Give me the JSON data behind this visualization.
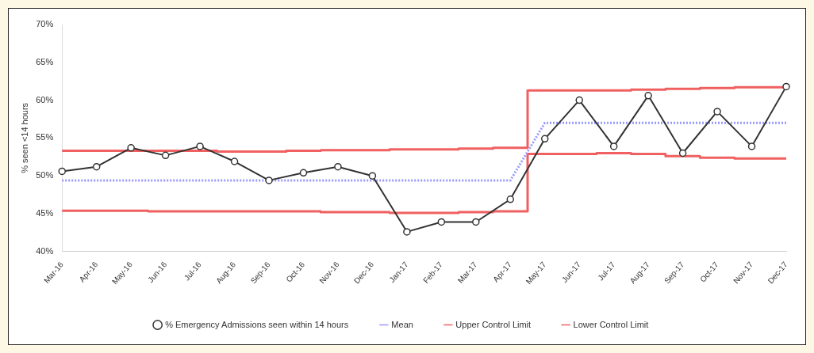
{
  "chart_data": {
    "type": "line",
    "ylabel": "% seen <14 hours",
    "categories": [
      "Mar-16",
      "Apr-16",
      "May-16",
      "Jun-16",
      "Jul-16",
      "Aug-16",
      "Sep-16",
      "Oct-16",
      "Nov-16",
      "Dec-16",
      "Jan-17",
      "Feb-17",
      "Mar-17",
      "Apr-17",
      "May-17",
      "Jun-17",
      "Jul-17",
      "Aug-17",
      "Sep-17",
      "Oct-17",
      "Nov-17",
      "Dec-17"
    ],
    "series": [
      {
        "name": "% Emergency Admissions seen within 14 hours",
        "color": "#333333",
        "marker": "circle",
        "line_style": "solid",
        "values": [
          50.6,
          51.2,
          53.7,
          52.7,
          53.9,
          51.9,
          49.4,
          50.4,
          51.2,
          50.0,
          42.6,
          43.9,
          43.9,
          46.9,
          54.9,
          60.0,
          53.9,
          60.6,
          53.0,
          58.5,
          53.9,
          61.8
        ]
      },
      {
        "name": "Mean",
        "color": "#9999ff",
        "marker": "none",
        "line_style": "dotted",
        "values": [
          49.4,
          49.4,
          49.4,
          49.4,
          49.4,
          49.4,
          49.4,
          49.4,
          49.4,
          49.4,
          49.4,
          49.4,
          49.4,
          49.4,
          57.0,
          57.0,
          57.0,
          57.0,
          57.0,
          57.0,
          57.0,
          57.0
        ]
      },
      {
        "name": "Upper Control Limit",
        "type": "step",
        "color": "#f06060",
        "marker": "none",
        "line_style": "solid",
        "values": [
          53.3,
          53.3,
          53.3,
          53.3,
          53.3,
          53.2,
          53.2,
          53.3,
          53.4,
          53.4,
          53.5,
          53.5,
          53.6,
          53.7,
          61.3,
          61.3,
          61.3,
          61.4,
          61.5,
          61.6,
          61.7,
          61.7
        ]
      },
      {
        "name": "Lower Control Limit",
        "type": "step",
        "color": "#f06060",
        "marker": "none",
        "line_style": "solid",
        "values": [
          45.4,
          45.4,
          45.4,
          45.3,
          45.3,
          45.3,
          45.3,
          45.3,
          45.2,
          45.2,
          45.1,
          45.1,
          45.2,
          45.3,
          52.9,
          52.9,
          53.0,
          52.9,
          52.6,
          52.4,
          52.3,
          52.3
        ]
      }
    ],
    "ylim": [
      40,
      70
    ],
    "yticks": [
      {
        "value": 40,
        "label": "40%"
      },
      {
        "value": 45,
        "label": "45%"
      },
      {
        "value": 50,
        "label": "50%"
      },
      {
        "value": 55,
        "label": "55%"
      },
      {
        "value": 60,
        "label": "60%"
      },
      {
        "value": 65,
        "label": "65%"
      },
      {
        "value": 70,
        "label": "70%"
      }
    ],
    "grid": false,
    "legend": "bottom"
  }
}
